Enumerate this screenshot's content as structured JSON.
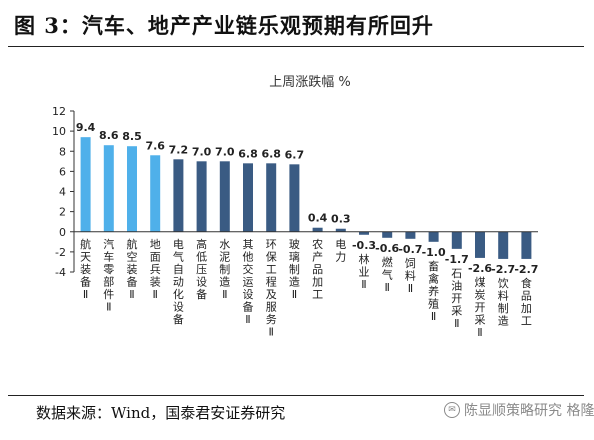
{
  "figure": {
    "title": "图 3：汽车、地产产业链乐观预期有所回升",
    "source": "数据来源：Wind，国泰君安证券研究",
    "watermark": "陈显顺策略研究 格隆汇"
  },
  "colors": {
    "bar_highlight": "#4fb0ea",
    "bar_normal": "#3a5b83",
    "axis": "#333333"
  },
  "chart_data": {
    "type": "bar",
    "title": "上周涨跌幅   %",
    "categories": [
      "航天装备Ⅱ",
      "汽车零部件Ⅱ",
      "航空装备Ⅱ",
      "地面兵装Ⅱ",
      "电气自动化设备",
      "高低压设备",
      "水泥制造Ⅱ",
      "其他交运设备Ⅱ",
      "环保工程及服务Ⅱ",
      "玻璃制造Ⅱ",
      "农产品加工",
      "电力",
      "林业Ⅱ",
      "燃气Ⅱ",
      "饲料Ⅱ",
      "畜禽养殖Ⅱ",
      "石油开采Ⅱ",
      "煤炭开采Ⅱ",
      "饮料制造",
      "食品加工"
    ],
    "values": [
      9.4,
      8.6,
      8.5,
      7.6,
      7.2,
      7.0,
      7.0,
      6.8,
      6.8,
      6.7,
      0.4,
      0.3,
      -0.3,
      -0.6,
      -0.7,
      -1.0,
      -1.7,
      -2.6,
      -2.7,
      -2.7
    ],
    "value_labels": [
      "9.4",
      "8.6",
      "8.5",
      "7.6",
      "7.2",
      "7.0",
      "7.0",
      "6.8",
      "6.8",
      "6.7",
      "0.4",
      "0.3",
      "-0.3",
      "-0.6",
      "-0.7",
      "-1.0",
      "-1.7",
      "-2.6",
      "-2.7",
      "-2.7"
    ],
    "highlight": [
      true,
      true,
      true,
      true,
      false,
      false,
      false,
      false,
      false,
      false,
      false,
      false,
      false,
      false,
      false,
      false,
      false,
      false,
      false,
      false
    ],
    "ylim": [
      -4,
      12
    ],
    "yticks": [
      12,
      10,
      8,
      6,
      4,
      2,
      0,
      -2,
      -4
    ],
    "xlabel": "",
    "ylabel": ""
  }
}
